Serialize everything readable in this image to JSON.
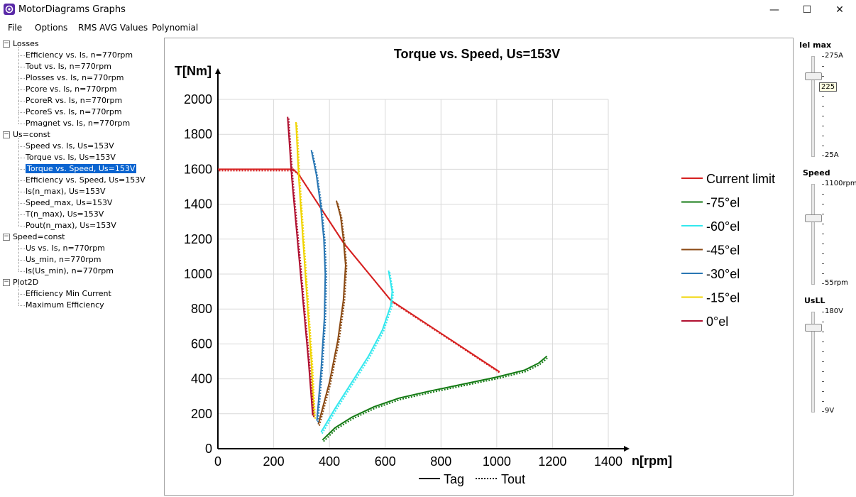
{
  "window": {
    "title": "MotorDiagrams Graphs",
    "min": "—",
    "max": "☐",
    "close": "✕"
  },
  "menu": [
    "File",
    "Options",
    "RMS AVG Values",
    "Polynomial"
  ],
  "tree": [
    {
      "label": "Losses",
      "level": 0,
      "expanded": true
    },
    {
      "label": "Efficiency vs. Is,  n=770rpm",
      "level": 1
    },
    {
      "label": "Tout vs. Is, n=770rpm",
      "level": 1
    },
    {
      "label": "Plosses vs. Is, n=770rpm",
      "level": 1
    },
    {
      "label": "Pcore vs. Is, n=770rpm",
      "level": 1
    },
    {
      "label": "PcoreR vs. Is, n=770rpm",
      "level": 1
    },
    {
      "label": "PcoreS vs. Is, n=770rpm",
      "level": 1
    },
    {
      "label": "Pmagnet vs. Is, n=770rpm",
      "level": 1
    },
    {
      "label": "Us=const",
      "level": 0,
      "expanded": true
    },
    {
      "label": "Speed vs. Is, Us=153V",
      "level": 1
    },
    {
      "label": "Torque vs. Is, Us=153V",
      "level": 1
    },
    {
      "label": "Torque vs. Speed, Us=153V",
      "level": 1,
      "selected": true
    },
    {
      "label": "Efficiency vs. Speed, Us=153V",
      "level": 1
    },
    {
      "label": "Is(n_max), Us=153V",
      "level": 1
    },
    {
      "label": "Speed_max, Us=153V",
      "level": 1
    },
    {
      "label": "T(n_max), Us=153V",
      "level": 1
    },
    {
      "label": "Pout(n_max), Us=153V",
      "level": 1
    },
    {
      "label": "Speed=const",
      "level": 0,
      "expanded": true
    },
    {
      "label": "Us vs. Is, n=770rpm",
      "level": 1
    },
    {
      "label": "Us_min, n=770rpm",
      "level": 1
    },
    {
      "label": "Is(Us_min), n=770rpm",
      "level": 1
    },
    {
      "label": "Plot2D",
      "level": 0,
      "expanded": true
    },
    {
      "label": "Efficiency Min Current",
      "level": 1
    },
    {
      "label": "Maximum Efficiency",
      "level": 1
    }
  ],
  "sliders": [
    {
      "title": "Iel   max",
      "top_label": "275A",
      "bottom_label": "25A",
      "value": 225,
      "min": 25,
      "max": 275,
      "tooltip": "225"
    },
    {
      "title": "Speed",
      "top_label": "1100rpm",
      "bottom_label": "55rpm",
      "value": 740,
      "min": 55,
      "max": 1100
    },
    {
      "title": "UsLL",
      "top_label": "180V",
      "bottom_label": "9V",
      "value": 153,
      "min": 9,
      "max": 180
    }
  ],
  "chart_data": {
    "type": "line",
    "title": "Torque vs. Speed, Us=153V",
    "xlabel": "n[rpm]",
    "ylabel": "T[Nm]",
    "xlim": [
      0,
      1400
    ],
    "ylim": [
      0,
      2000
    ],
    "xticks": [
      0,
      200,
      400,
      600,
      800,
      1000,
      1200,
      1400
    ],
    "yticks": [
      0,
      200,
      400,
      600,
      800,
      1000,
      1200,
      1400,
      1600,
      1800,
      2000
    ],
    "grid": true,
    "legend_position": "right",
    "style_legend": [
      {
        "label": "Tag",
        "style": "solid"
      },
      {
        "label": "Tout",
        "style": "dotted"
      }
    ],
    "series": [
      {
        "name": "Current limit",
        "color": "#d62020",
        "x": [
          0,
          270,
          290,
          450,
          620,
          1010
        ],
        "y": [
          1600,
          1600,
          1570,
          1180,
          850,
          440
        ]
      },
      {
        "name": "-75°el",
        "color": "#137a13",
        "x": [
          375,
          420,
          480,
          560,
          650,
          760,
          880,
          1000,
          1100,
          1150,
          1180
        ],
        "y": [
          50,
          120,
          180,
          240,
          290,
          330,
          370,
          410,
          450,
          490,
          530
        ]
      },
      {
        "name": "-60°el",
        "color": "#33e8ee",
        "x": [
          370,
          420,
          480,
          540,
          590,
          620,
          625,
          612
        ],
        "y": [
          95,
          230,
          380,
          530,
          680,
          820,
          900,
          1020
        ]
      },
      {
        "name": "-45°el",
        "color": "#8b4a14",
        "x": [
          360,
          400,
          430,
          450,
          458,
          450,
          440,
          425
        ],
        "y": [
          140,
          380,
          620,
          850,
          1050,
          1200,
          1330,
          1420
        ]
      },
      {
        "name": "-30°el",
        "color": "#2a77b4",
        "x": [
          355,
          370,
          382,
          385,
          380,
          368,
          353,
          335
        ],
        "y": [
          160,
          450,
          750,
          1000,
          1200,
          1400,
          1570,
          1710
        ]
      },
      {
        "name": "-15°el",
        "color": "#f0d400",
        "x": [
          345,
          335,
          320,
          305,
          290,
          280
        ],
        "y": [
          180,
          500,
          850,
          1200,
          1550,
          1870
        ]
      },
      {
        "name": "0°el",
        "color": "#b01030",
        "x": [
          340,
          325,
          305,
          285,
          265,
          250
        ],
        "y": [
          190,
          500,
          850,
          1200,
          1550,
          1900
        ]
      }
    ]
  }
}
